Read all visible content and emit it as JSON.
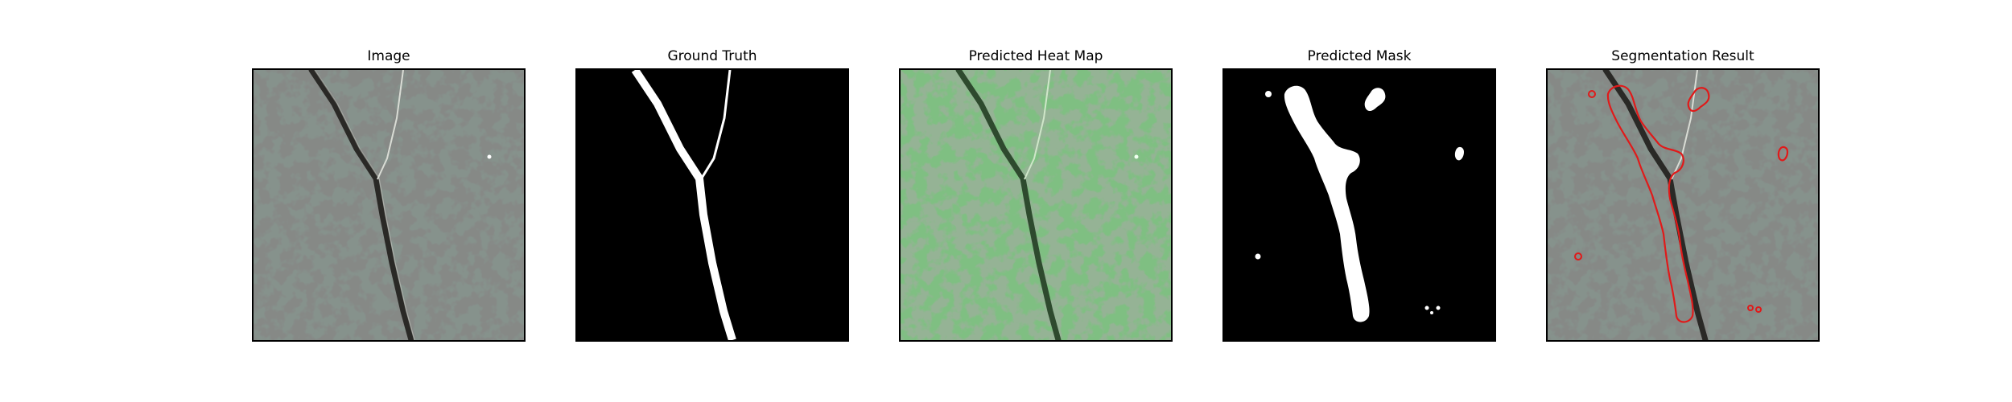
{
  "panels": [
    {
      "title": "Image"
    },
    {
      "title": "Ground Truth"
    },
    {
      "title": "Predicted Heat Map"
    },
    {
      "title": "Predicted Mask"
    },
    {
      "title": "Segmentation Result"
    }
  ],
  "colors": {
    "background": "#ffffff",
    "texture_base": "#7f8b86",
    "texture_spots": "#3c3d3b",
    "crack": "#2b2a26",
    "mask_white": "#ffffff",
    "mask_black": "#000000",
    "heatmap_tint": "#5faa62",
    "contour": "#e01a1a"
  }
}
